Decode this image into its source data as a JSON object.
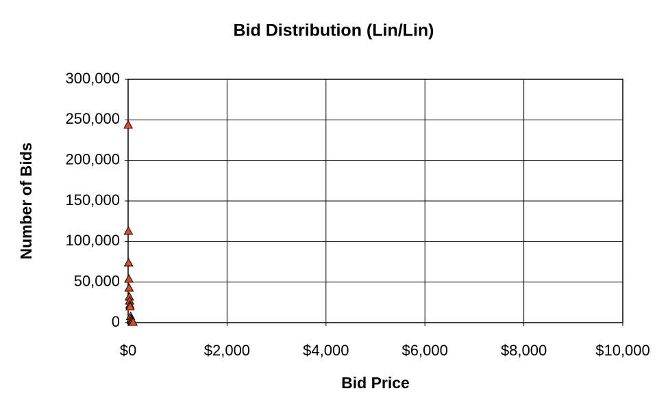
{
  "chart_data": {
    "type": "scatter",
    "title": "Bid Distribution (Lin/Lin)",
    "x_label": "Bid Price",
    "y_label": "Number of Bids",
    "series": [
      {
        "color": "#e84a10",
        "x": [
          2,
          5,
          10,
          15,
          20,
          25,
          30,
          35,
          40,
          50,
          60,
          70,
          80,
          100
        ],
        "values": [
          244000,
          113000,
          74000,
          54000,
          43000,
          32000,
          27000,
          22000,
          20000,
          8000,
          5000,
          3000,
          1500,
          800
        ]
      }
    ],
    "xlim": [
      0,
      10000
    ],
    "xticks": [
      {
        "value": 0,
        "label": "$0"
      },
      {
        "value": 2000,
        "label": "$2,000"
      },
      {
        "value": 4000,
        "label": "$4,000"
      },
      {
        "value": 6000,
        "label": "$6,000"
      },
      {
        "value": 8000,
        "label": "$8,000"
      },
      {
        "value": 10000,
        "label": "$10,000"
      }
    ],
    "ylim": [
      0,
      300000
    ],
    "yticks": [
      0,
      {
        "value": 50000,
        "label": "50,000"
      },
      {
        "value": 100000,
        "label": "100,000"
      },
      {
        "value": 150000,
        "label": "150,000"
      },
      {
        "value": 200000,
        "label": "200,000"
      },
      {
        "value": 250000,
        "label": "250,000"
      },
      {
        "value": 300000,
        "label": "300,000"
      }
    ],
    "grid": true
  }
}
